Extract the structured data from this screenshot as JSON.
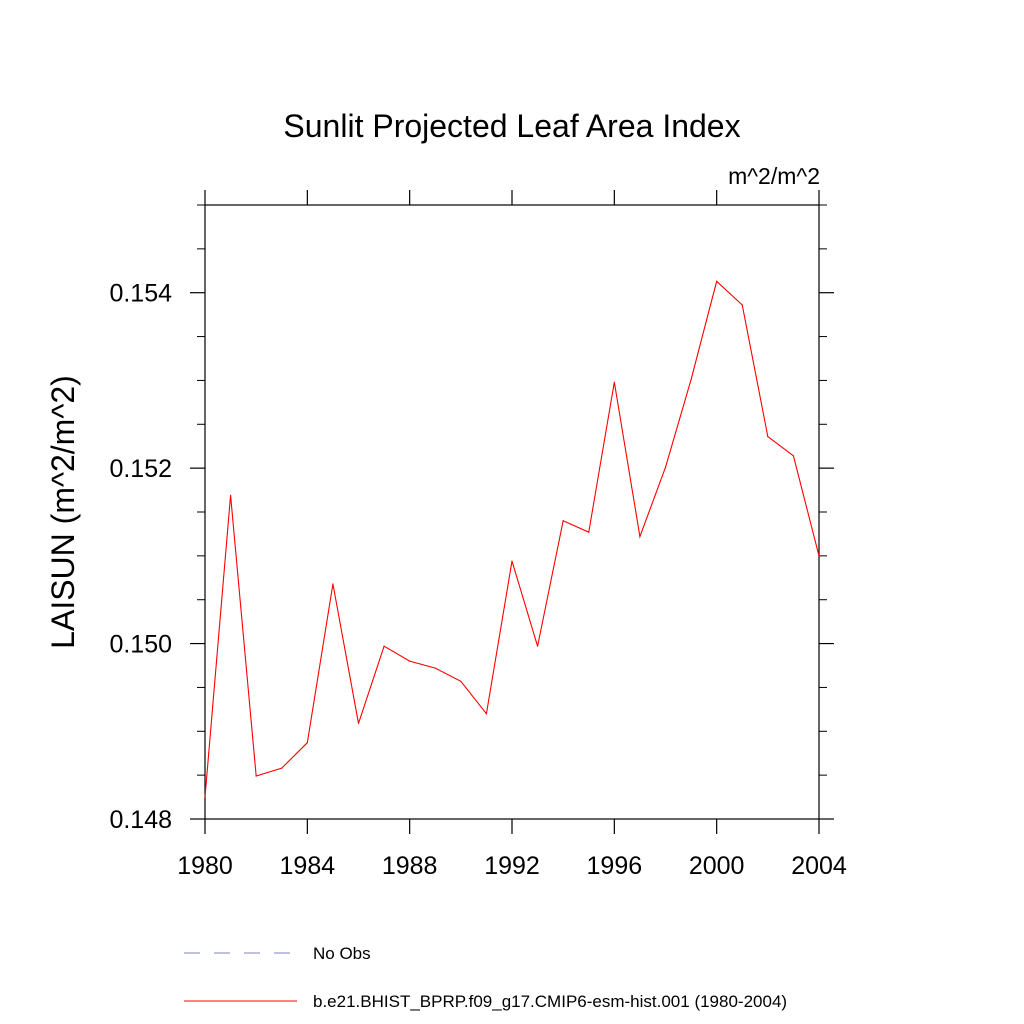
{
  "chart_data": {
    "type": "line",
    "title": "Sunlit Projected Leaf Area Index",
    "units": "m^2/m^2",
    "xlabel": "",
    "ylabel": "LAISUN  (m^2/m^2)",
    "xlim": [
      1980,
      2004
    ],
    "ylim": [
      0.148,
      0.155
    ],
    "x_ticks": [
      1980,
      1984,
      1988,
      1992,
      1996,
      2000,
      2004
    ],
    "x_tick_labels": [
      "1980",
      "1984",
      "1988",
      "1992",
      "1996",
      "2000",
      "2004"
    ],
    "y_ticks": [
      0.148,
      0.15,
      0.152,
      0.154
    ],
    "y_tick_labels": [
      "0.148",
      "0.150",
      "0.152",
      "0.154"
    ],
    "series": [
      {
        "name": "b.e21.BHIST_BPRP.f09_g17.CMIP6-esm-hist.001 (1980-2004)",
        "color": "#ff0000",
        "style": "solid",
        "x": [
          1980,
          1981,
          1982,
          1983,
          1984,
          1985,
          1986,
          1987,
          1988,
          1989,
          1990,
          1991,
          1992,
          1993,
          1994,
          1995,
          1996,
          1997,
          1998,
          1999,
          2000,
          2001,
          2002,
          2003,
          2004
        ],
        "values": [
          0.14825,
          0.15169,
          0.14849,
          0.14858,
          0.14887,
          0.15068,
          0.14909,
          0.14997,
          0.1498,
          0.14972,
          0.14957,
          0.1492,
          0.15094,
          0.14997,
          0.1514,
          0.15127,
          0.15298,
          0.15122,
          0.15201,
          0.15301,
          0.15413,
          0.15386,
          0.15236,
          0.15214,
          0.151
        ]
      }
    ],
    "legend": [
      {
        "label": "No Obs",
        "color": "#8080c0",
        "style": "dashed"
      },
      {
        "label": "b.e21.BHIST_BPRP.f09_g17.CMIP6-esm-hist.001 (1980-2004)",
        "color": "#ff0000",
        "style": "solid"
      }
    ]
  }
}
